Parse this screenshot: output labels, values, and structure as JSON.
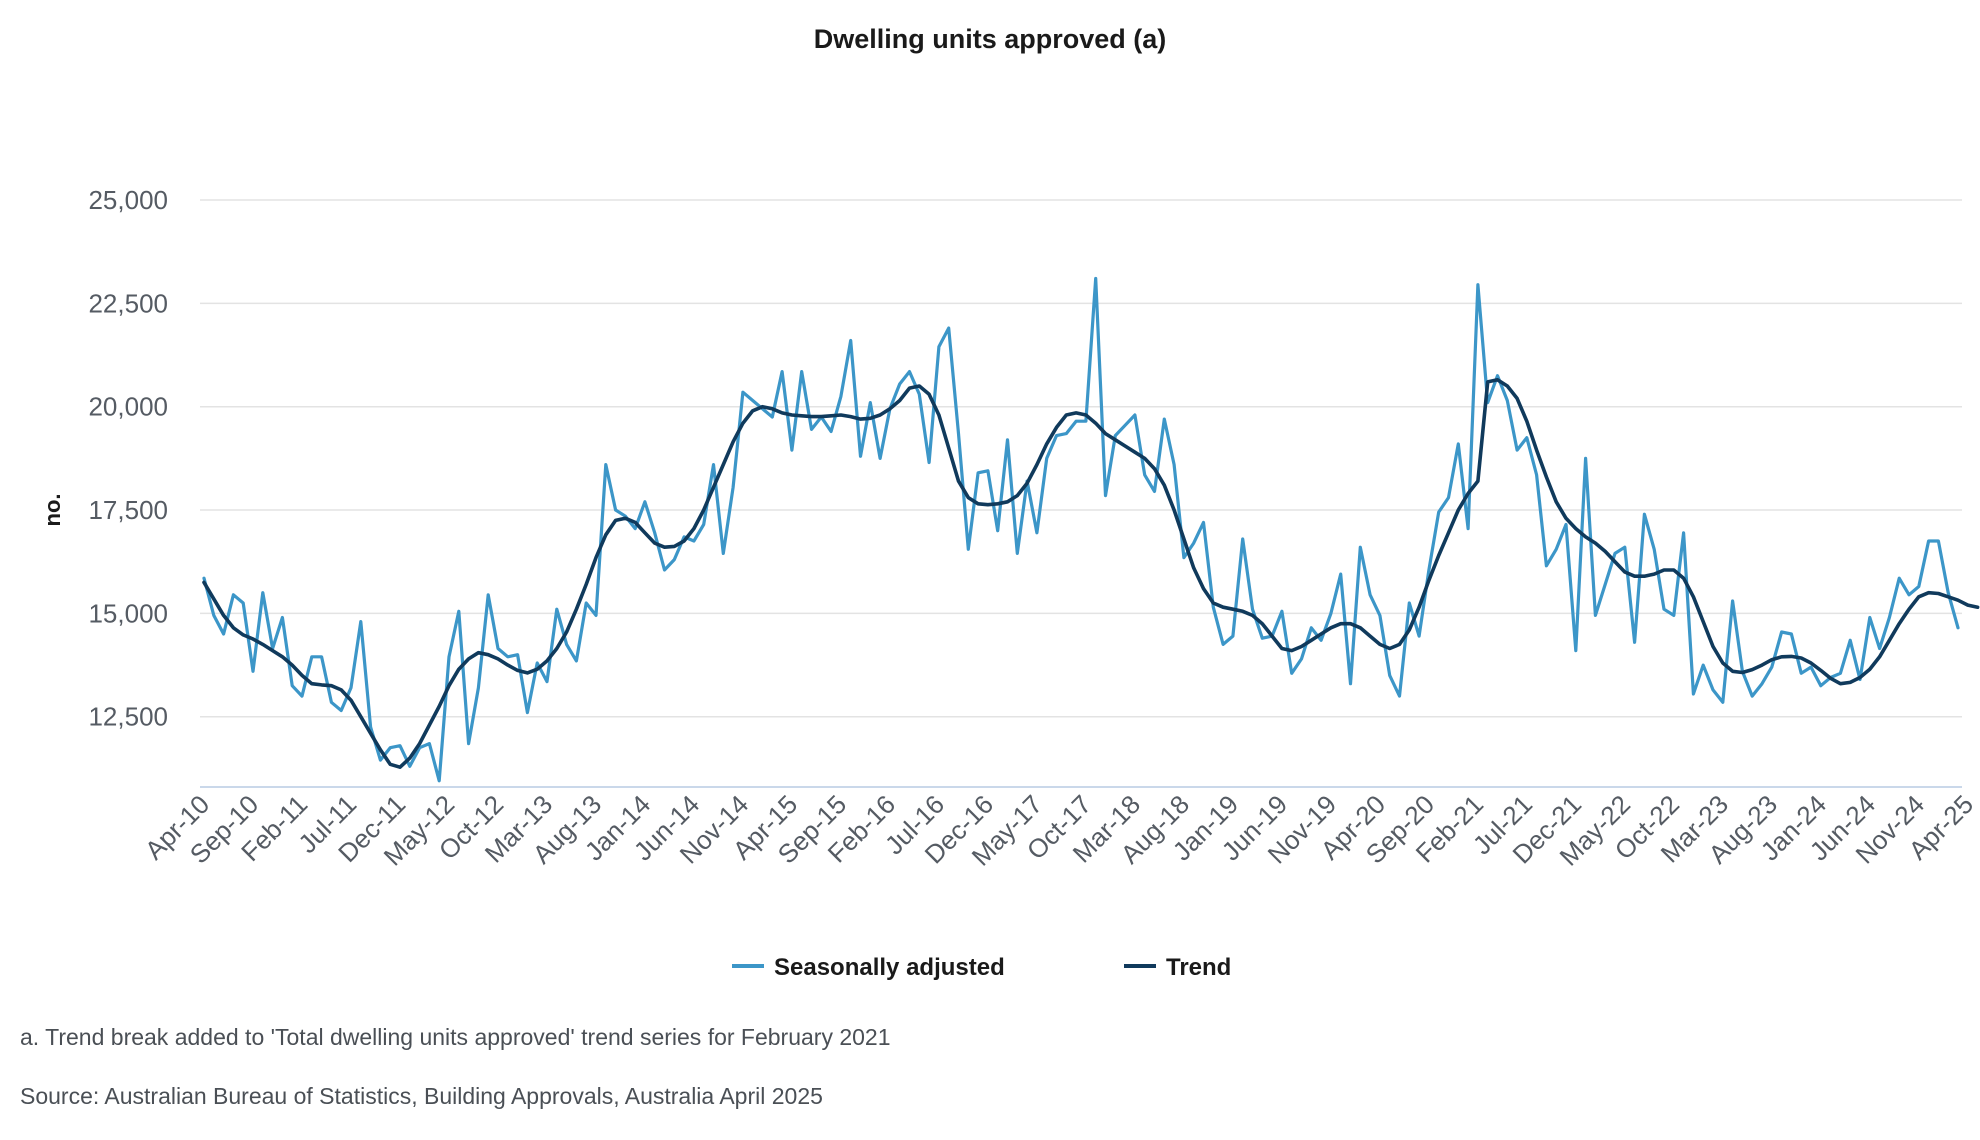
{
  "colors": {
    "seasonally_adjusted": "#3c96c8",
    "trend": "#103a5c",
    "grid": "#e3e3e3",
    "axis": "#b9cce4"
  },
  "footnotes": {
    "note_a": "a. Trend break added to 'Total dwelling units approved' trend series for February 2021",
    "source": "Source: Australian Bureau of Statistics, Building Approvals, Australia April 2025"
  },
  "chart_data": {
    "type": "line",
    "title": "Dwelling units approved (a)",
    "xlabel": "",
    "ylabel": "no.",
    "x_start": "Apr-10",
    "x_end": "Apr-25",
    "x_tick_labels": [
      "Apr-10",
      "Sep-10",
      "Feb-11",
      "Jul-11",
      "Dec-11",
      "May-12",
      "Oct-12",
      "Mar-13",
      "Aug-13",
      "Jan-14",
      "Jun-14",
      "Nov-14",
      "Apr-15",
      "Sep-15",
      "Feb-16",
      "Jul-16",
      "Dec-16",
      "May-17",
      "Oct-17",
      "Mar-18",
      "Aug-18",
      "Jan-19",
      "Jun-19",
      "Nov-19",
      "Apr-20",
      "Sep-20",
      "Feb-21",
      "Jul-21",
      "Dec-21",
      "May-22",
      "Oct-22",
      "Mar-23",
      "Aug-23",
      "Jan-24",
      "Jun-24",
      "Nov-24",
      "Apr-25"
    ],
    "y_ticks": [
      "12,500",
      "15,000",
      "17,500",
      "20,000",
      "22,500",
      "25,000"
    ],
    "ylim": [
      10800,
      25000
    ],
    "grid": true,
    "legend_position": "bottom-center",
    "series": [
      {
        "name": "Seasonally adjusted",
        "values": [
          15850,
          14950,
          14500,
          15450,
          15250,
          13600,
          15500,
          14150,
          14900,
          13250,
          13000,
          13950,
          13950,
          12850,
          12650,
          13200,
          14800,
          12250,
          11450,
          11750,
          11800,
          11300,
          11750,
          11850,
          10950,
          13950,
          15050,
          11850,
          13200,
          15450,
          14150,
          13950,
          14000,
          12600,
          13800,
          13350,
          15100,
          14250,
          13850,
          15250,
          14950,
          18600,
          17500,
          17350,
          17050,
          17700,
          16950,
          16050,
          16300,
          16850,
          16750,
          17150,
          18600,
          16450,
          18050,
          20350,
          20150,
          19950,
          19750,
          20850,
          18950,
          20850,
          19450,
          19750,
          19400,
          20250,
          21600,
          18800,
          20100,
          18750,
          19950,
          20550,
          20850,
          20300,
          18650,
          21450,
          21900,
          19350,
          16550,
          18400,
          18450,
          17000,
          19200,
          16450,
          18200,
          16950,
          18750,
          19300,
          19350,
          19650,
          19650,
          23100,
          17850,
          19300,
          19550,
          19800,
          18350,
          17950,
          19700,
          18600,
          16350,
          16700,
          17200,
          15150,
          14250,
          14450,
          16800,
          15100,
          14400,
          14450,
          15050,
          13550,
          13900,
          14650,
          14350,
          15000,
          15950,
          13300,
          16600,
          15450,
          14950,
          13500,
          13000,
          15250,
          14450,
          16050,
          17450,
          17800,
          19100,
          17050,
          22950,
          20100,
          20750,
          20150,
          18950,
          19250,
          18350,
          16150,
          16550,
          17150,
          14100,
          18750,
          14950,
          15700,
          16450,
          16600,
          14300,
          17400,
          16550,
          15100,
          14950,
          16950,
          13050,
          13750,
          13150,
          12850,
          15300,
          13600,
          13000,
          13300,
          13700,
          14550,
          14500,
          13550,
          13700,
          13250,
          13450,
          13550,
          14350,
          13400,
          14900,
          14150,
          14900,
          15850,
          15450,
          15650,
          16750,
          16750,
          15500,
          14650
        ]
      },
      {
        "name": "Trend",
        "values": [
          15750,
          15350,
          14950,
          14650,
          14480,
          14380,
          14250,
          14100,
          13950,
          13750,
          13500,
          13300,
          13270,
          13250,
          13150,
          12900,
          12500,
          12100,
          11700,
          11350,
          11280,
          11500,
          11850,
          12300,
          12750,
          13250,
          13650,
          13900,
          14050,
          14000,
          13900,
          13750,
          13620,
          13560,
          13650,
          13850,
          14150,
          14550,
          15100,
          15700,
          16350,
          16900,
          17250,
          17300,
          17200,
          16950,
          16700,
          16600,
          16620,
          16750,
          17050,
          17500,
          18050,
          18600,
          19150,
          19600,
          19900,
          20000,
          19950,
          19850,
          19800,
          19780,
          19760,
          19760,
          19780,
          19800,
          19760,
          19700,
          19720,
          19800,
          19950,
          20150,
          20450,
          20500,
          20300,
          19800,
          19000,
          18200,
          17800,
          17650,
          17630,
          17650,
          17700,
          17850,
          18150,
          18600,
          19100,
          19500,
          19800,
          19850,
          19800,
          19600,
          19350,
          19200,
          19050,
          18900,
          18750,
          18500,
          18100,
          17500,
          16800,
          16100,
          15600,
          15250,
          15150,
          15100,
          15050,
          14950,
          14750,
          14450,
          14150,
          14100,
          14200,
          14350,
          14500,
          14650,
          14750,
          14750,
          14650,
          14450,
          14250,
          14150,
          14250,
          14600,
          15150,
          15800,
          16400,
          16950,
          17500,
          17900,
          18200,
          20600,
          20650,
          20500,
          20200,
          19650,
          18950,
          18300,
          17700,
          17300,
          17050,
          16850,
          16700,
          16500,
          16250,
          16000,
          15900,
          15900,
          15950,
          16050,
          16050,
          15850,
          15400,
          14800,
          14200,
          13800,
          13600,
          13570,
          13640,
          13750,
          13880,
          13950,
          13960,
          13920,
          13800,
          13620,
          13430,
          13300,
          13330,
          13450,
          13650,
          13950,
          14350,
          14750,
          15100,
          15400,
          15500,
          15480,
          15400,
          15320,
          15200,
          15150
        ]
      }
    ]
  }
}
